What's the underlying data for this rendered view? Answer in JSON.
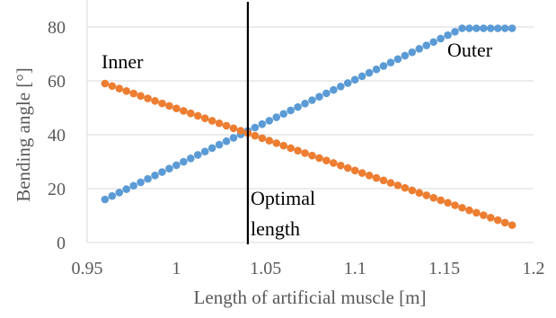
{
  "chart_data": {
    "type": "scatter",
    "xlabel": "Length of artificial muscle [m]",
    "ylabel": "Bending angle [°]",
    "xlim": [
      0.95,
      1.2
    ],
    "ylim": [
      0,
      90
    ],
    "x_ticks": [
      "0.95",
      "1",
      "1.05",
      "1.1",
      "1.15",
      "1.2"
    ],
    "y_ticks": [
      "0",
      "20",
      "40",
      "60",
      "80"
    ],
    "grid": "horizontal",
    "marker_line": {
      "x": 1.04,
      "color": "#000000"
    },
    "annotations": {
      "inner": "Inner",
      "outer": "Outer",
      "optimal_line1": "Optimal",
      "optimal_line2": "length"
    },
    "series": [
      {
        "name": "Outer",
        "color": "#5b9bd5",
        "x_start": 0.96,
        "x_end": 1.19,
        "step": 0.004,
        "segments": [
          {
            "x": [
              0.96,
              1.16
            ],
            "y": [
              16,
              79.5
            ]
          },
          {
            "x": [
              1.16,
              1.19
            ],
            "y": [
              79.5,
              79.5
            ]
          }
        ]
      },
      {
        "name": "Inner",
        "color": "#ed7d31",
        "x_start": 0.96,
        "x_end": 1.19,
        "step": 0.004,
        "segments": [
          {
            "x": [
              0.96,
              1.19
            ],
            "y": [
              59,
              6
            ]
          }
        ]
      }
    ]
  }
}
